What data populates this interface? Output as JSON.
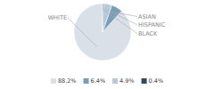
{
  "chart_data": {
    "type": "pie",
    "categories": [
      "WHITE",
      "ASIAN",
      "HISPANIC",
      "BLACK"
    ],
    "values": [
      88.2,
      6.4,
      4.9,
      0.4
    ],
    "value_labels": [
      "88.2%",
      "6.4%",
      "4.9%",
      "0.4%"
    ],
    "colors": [
      "#d9e0e8",
      "#7a9db8",
      "#b8cad8",
      "#2e4a62"
    ],
    "legend": "bottom"
  }
}
